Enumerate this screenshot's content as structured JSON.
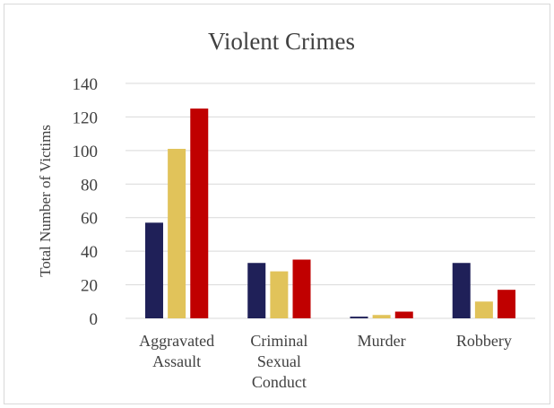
{
  "chart_data": {
    "type": "bar",
    "title": "Violent Crimes",
    "xlabel": "",
    "ylabel": "Total Number of Victims",
    "categories": [
      [
        "Aggravated",
        "Assault"
      ],
      [
        "Criminal",
        "Sexual",
        "Conduct"
      ],
      [
        "Murder"
      ],
      [
        "Robbery"
      ]
    ],
    "series": [
      {
        "color": "#1f2058",
        "values": [
          57,
          33,
          1,
          33
        ]
      },
      {
        "color": "#e1c35a",
        "values": [
          101,
          28,
          2,
          10
        ]
      },
      {
        "color": "#c00000",
        "values": [
          125,
          35,
          4,
          17
        ]
      }
    ],
    "ylim": [
      0,
      140
    ],
    "yticks": [
      0,
      20,
      40,
      60,
      80,
      100,
      120,
      140
    ],
    "grid": true,
    "legend": "none"
  }
}
